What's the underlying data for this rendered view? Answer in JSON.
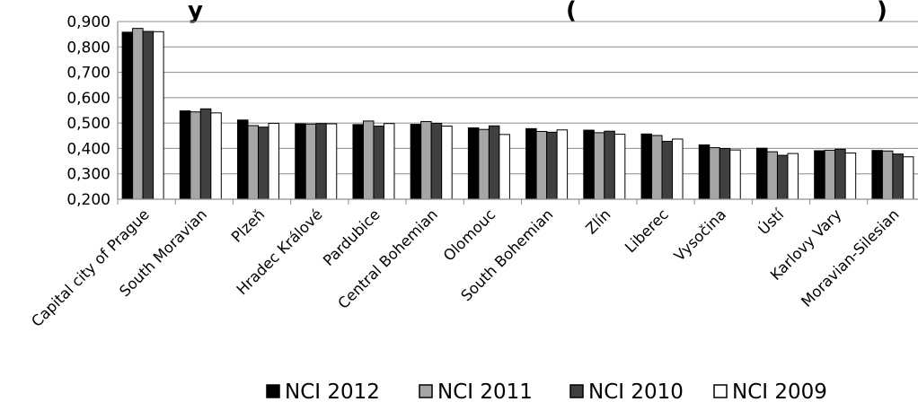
{
  "chart_data": {
    "type": "bar",
    "title_fragments": [
      "y",
      "(",
      ")"
    ],
    "categories": [
      "Capital city of Prague",
      "South Moravian",
      "Plzeň",
      "Hradec Králové",
      "Pardubice",
      "Central Bohemian",
      "Olomouc",
      "South Bohemian",
      "Zlín",
      "Liberec",
      "Vysočina",
      "Ústí",
      "Karlovy Vary",
      "Moravian-Silesian"
    ],
    "ytick_labels": [
      "0,200",
      "0,300",
      "0,400",
      "0,500",
      "0,600",
      "0,700",
      "0,800",
      "0,900"
    ],
    "ylim": [
      0.2,
      0.9
    ],
    "grid": true,
    "legend_position": "bottom",
    "series": [
      {
        "name": "NCI 2012",
        "color": "#000000",
        "values": [
          0.858,
          0.548,
          0.512,
          0.497,
          0.494,
          0.495,
          0.481,
          0.478,
          0.472,
          0.457,
          0.414,
          0.401,
          0.391,
          0.392
        ]
      },
      {
        "name": "NCI 2011",
        "color": "#a6a6a6",
        "values": [
          0.873,
          0.544,
          0.49,
          0.496,
          0.508,
          0.506,
          0.475,
          0.467,
          0.462,
          0.451,
          0.403,
          0.387,
          0.393,
          0.39
        ]
      },
      {
        "name": "NCI 2010",
        "color": "#404040",
        "values": [
          0.861,
          0.556,
          0.484,
          0.498,
          0.488,
          0.499,
          0.489,
          0.464,
          0.468,
          0.428,
          0.4,
          0.373,
          0.397,
          0.378
        ]
      },
      {
        "name": "NCI 2009",
        "color": "#ffffff",
        "values": [
          0.86,
          0.54,
          0.499,
          0.497,
          0.498,
          0.488,
          0.455,
          0.473,
          0.456,
          0.437,
          0.394,
          0.38,
          0.382,
          0.367
        ]
      }
    ]
  }
}
